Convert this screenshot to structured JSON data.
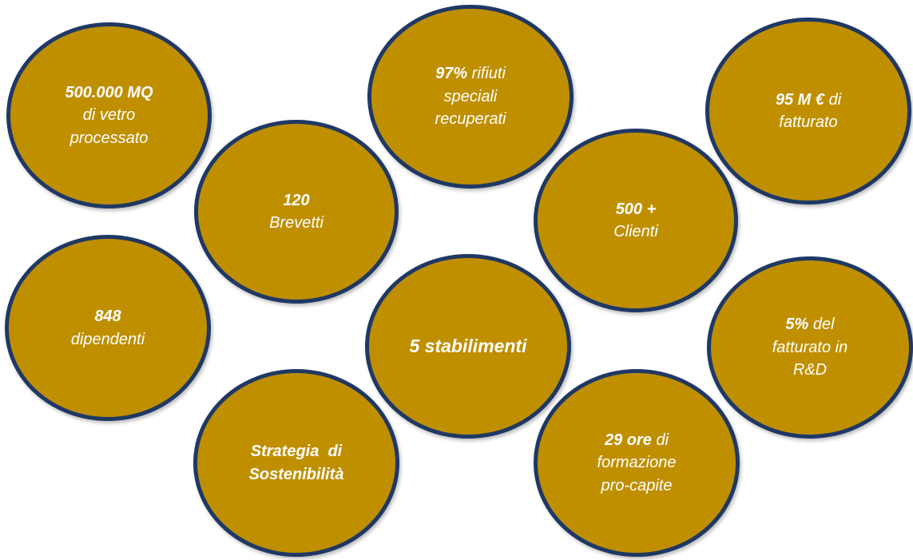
{
  "bubbles": [
    {
      "lines": [
        {
          "bold": "500.000 MQ",
          "rest": ""
        },
        {
          "bold": "",
          "rest": "di vetro"
        },
        {
          "bold": "",
          "rest": "processato"
        }
      ]
    },
    {
      "lines": [
        {
          "bold": "97%",
          "rest": " rifiuti"
        },
        {
          "bold": "",
          "rest": "speciali"
        },
        {
          "bold": "",
          "rest": "recuperati"
        }
      ]
    },
    {
      "lines": [
        {
          "bold": "95 M €",
          "rest": " di"
        },
        {
          "bold": "",
          "rest": "fatturato"
        }
      ]
    },
    {
      "lines": [
        {
          "bold": "120",
          "rest": ""
        },
        {
          "bold": "",
          "rest": "Brevetti"
        }
      ]
    },
    {
      "lines": [
        {
          "bold": "500 +",
          "rest": ""
        },
        {
          "bold": "",
          "rest": "Clienti"
        }
      ]
    },
    {
      "lines": [
        {
          "bold": "848",
          "rest": ""
        },
        {
          "bold": "",
          "rest": "dipendenti"
        }
      ]
    },
    {
      "lines": [
        {
          "bold": "5 stabilimenti",
          "rest": ""
        }
      ]
    },
    {
      "lines": [
        {
          "bold": "5%",
          "rest": " del"
        },
        {
          "bold": "",
          "rest": "fatturato in"
        },
        {
          "bold": "",
          "rest": "R&D"
        }
      ]
    },
    {
      "lines": [
        {
          "bold": "Strategia  di",
          "rest": ""
        },
        {
          "bold": "Sostenibilità",
          "rest": ""
        }
      ]
    },
    {
      "lines": [
        {
          "bold": "29 ore",
          "rest": " di"
        },
        {
          "bold": "",
          "rest": "formazione"
        },
        {
          "bold": "",
          "rest": "pro-capite"
        }
      ]
    }
  ],
  "colors": {
    "bubble_fill": "#bf8f00",
    "bubble_border": "#1f3864",
    "text": "#ffffff"
  }
}
